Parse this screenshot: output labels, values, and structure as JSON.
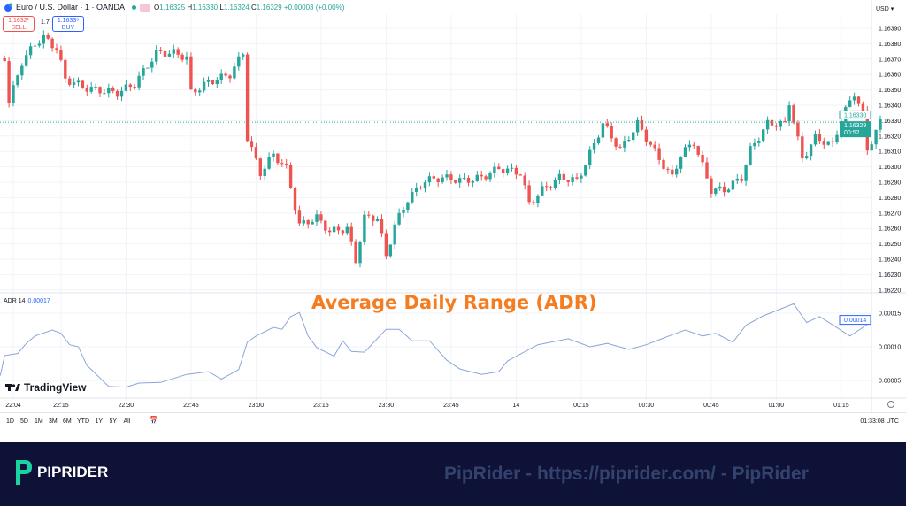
{
  "header": {
    "symbol": "Euro / U.S. Dollar · 1 · OANDA",
    "open_label": "O",
    "open": "1.16325",
    "high_label": "H",
    "high": "1.16330",
    "low_label": "L",
    "low": "1.16324",
    "close_label": "C",
    "close": "1.16329",
    "change": "+0.00003 (+0.00%)"
  },
  "trade": {
    "sell_price": "1.1632¹",
    "sell_label": "SELL",
    "spread": "1.7",
    "buy_price": "1.1633⁸",
    "buy_label": "BUY"
  },
  "currency": "USD",
  "price_axis": {
    "ticks": [
      "1.16390",
      "1.16380",
      "1.16370",
      "1.16360",
      "1.16350",
      "1.16340",
      "1.16330",
      "1.16320",
      "1.16310",
      "1.16300",
      "1.16290",
      "1.16280",
      "1.16270",
      "1.16260",
      "1.16250",
      "1.16240",
      "1.16230",
      "1.16220"
    ],
    "ask_badge": "1.16330",
    "last_badge": "1.16329",
    "countdown": "00:52"
  },
  "indicator": {
    "name": "ADR 14",
    "value": "0.00017",
    "ticks": [
      "0.00015",
      "0.00010",
      "0.00005"
    ],
    "last_badge": "0.00014"
  },
  "overlay_title": "Average Daily Range (ADR)",
  "brand": "TradingView",
  "time_axis": [
    {
      "t": "22:04",
      "label": "22:04"
    },
    {
      "t": "22:15",
      "label": "22:15"
    },
    {
      "t": "22:30",
      "label": "22:30"
    },
    {
      "t": "22:45",
      "label": "22:45"
    },
    {
      "t": "23:00",
      "label": "23:00"
    },
    {
      "t": "23:15",
      "label": "23:15"
    },
    {
      "t": "23:30",
      "label": "23:30"
    },
    {
      "t": "23:45",
      "label": "23:45"
    },
    {
      "t": "00:00",
      "label": "14"
    },
    {
      "t": "00:15",
      "label": "00:15"
    },
    {
      "t": "00:30",
      "label": "00:30"
    },
    {
      "t": "00:45",
      "label": "00:45"
    },
    {
      "t": "01:00",
      "label": "01:00"
    },
    {
      "t": "01:15",
      "label": "01:15"
    }
  ],
  "toolbar": {
    "ranges": [
      "1D",
      "5D",
      "1M",
      "3M",
      "6M",
      "YTD",
      "1Y",
      "5Y",
      "All"
    ],
    "clock": "01:33:08 UTC"
  },
  "colors": {
    "up": "#26a69a",
    "down": "#ef5350",
    "adr": "#8aa6d8",
    "accent": "#f57c1f",
    "footer": "#0e1236"
  },
  "chart_data": {
    "type": "candlestick",
    "price_closes": [
      [
        "22:02",
        1.16371
      ],
      [
        "22:03",
        1.16342
      ],
      [
        "22:06",
        1.16368
      ],
      [
        "22:09",
        1.1638
      ],
      [
        "22:11",
        1.16384
      ],
      [
        "22:14",
        1.16377
      ],
      [
        "22:16",
        1.16357
      ],
      [
        "22:21",
        1.16351
      ],
      [
        "22:28",
        1.16348
      ],
      [
        "22:30",
        1.16351
      ],
      [
        "22:32",
        1.16354
      ],
      [
        "22:37",
        1.16374
      ],
      [
        "22:41",
        1.16374
      ],
      [
        "22:44",
        1.16371
      ],
      [
        "22:45",
        1.16348
      ],
      [
        "22:49",
        1.16355
      ],
      [
        "22:54",
        1.1636
      ],
      [
        "22:57",
        1.16374
      ],
      [
        "22:58",
        1.16319
      ],
      [
        "23:01",
        1.16296
      ],
      [
        "23:04",
        1.16308
      ],
      [
        "23:07",
        1.16299
      ],
      [
        "23:10",
        1.16262
      ],
      [
        "23:14",
        1.16267
      ],
      [
        "23:17",
        1.16258
      ],
      [
        "23:21",
        1.1626
      ],
      [
        "23:23",
        1.16239
      ],
      [
        "23:25",
        1.16267
      ],
      [
        "23:28",
        1.16267
      ],
      [
        "23:30",
        1.16242
      ],
      [
        "23:32",
        1.16262
      ],
      [
        "23:35",
        1.16279
      ],
      [
        "23:39",
        1.16291
      ],
      [
        "23:43",
        1.16293
      ],
      [
        "23:48",
        1.16291
      ],
      [
        "23:52",
        1.16293
      ],
      [
        "23:56",
        1.16299
      ],
      [
        "00:01",
        1.16296
      ],
      [
        "00:03",
        1.16276
      ],
      [
        "00:06",
        1.16285
      ],
      [
        "00:10",
        1.16293
      ],
      [
        "00:14",
        1.16291
      ],
      [
        "00:16",
        1.16302
      ],
      [
        "00:20",
        1.16328
      ],
      [
        "00:24",
        1.16311
      ],
      [
        "00:28",
        1.16328
      ],
      [
        "00:30",
        1.16319
      ],
      [
        "00:33",
        1.16305
      ],
      [
        "00:36",
        1.16293
      ],
      [
        "00:38",
        1.16308
      ],
      [
        "00:41",
        1.16316
      ],
      [
        "00:45",
        1.16285
      ],
      [
        "00:48",
        1.16285
      ],
      [
        "00:52",
        1.16293
      ],
      [
        "00:54",
        1.16311
      ],
      [
        "00:58",
        1.16328
      ],
      [
        "01:02",
        1.16328
      ],
      [
        "01:03",
        1.16342
      ],
      [
        "01:06",
        1.16305
      ],
      [
        "01:09",
        1.16319
      ],
      [
        "01:13",
        1.16314
      ],
      [
        "01:15",
        1.16331
      ],
      [
        "01:18",
        1.16348
      ],
      [
        "01:20",
        1.16334
      ],
      [
        "01:21",
        1.16311
      ],
      [
        "01:24",
        1.16329
      ]
    ],
    "adr": [
      [
        "22:01",
        5.7e-05
      ],
      [
        "22:02",
        8.7e-05
      ],
      [
        "22:05",
        9e-05
      ],
      [
        "22:07",
        0.000105
      ],
      [
        "22:09",
        0.000116
      ],
      [
        "22:13",
        0.000125
      ],
      [
        "22:15",
        0.00012
      ],
      [
        "22:17",
        0.000103
      ],
      [
        "22:19",
        0.0001
      ],
      [
        "22:21",
        7.2e-05
      ],
      [
        "22:22",
        6.6e-05
      ],
      [
        "22:26",
        4.1e-05
      ],
      [
        "22:30",
        4e-05
      ],
      [
        "22:33",
        4.6e-05
      ],
      [
        "22:38",
        4.7e-05
      ],
      [
        "22:44",
        5.9e-05
      ],
      [
        "22:49",
        6.3e-05
      ],
      [
        "22:52",
        5.2e-05
      ],
      [
        "22:56",
        6.6e-05
      ],
      [
        "22:58",
        0.000107
      ],
      [
        "23:00",
        0.000116
      ],
      [
        "23:04",
        0.000129
      ],
      [
        "23:06",
        0.000126
      ],
      [
        "23:08",
        0.000145
      ],
      [
        "23:10",
        0.000151
      ],
      [
        "23:12",
        0.000116
      ],
      [
        "23:14",
        9.9e-05
      ],
      [
        "23:18",
        8.6e-05
      ],
      [
        "23:20",
        0.000109
      ],
      [
        "23:22",
        9.3e-05
      ],
      [
        "23:25",
        9.2e-05
      ],
      [
        "23:30",
        0.000126
      ],
      [
        "23:33",
        0.000126
      ],
      [
        "23:36",
        0.000109
      ],
      [
        "23:40",
        0.000109
      ],
      [
        "23:44",
        8e-05
      ],
      [
        "23:47",
        6.7e-05
      ],
      [
        "23:52",
        5.9e-05
      ],
      [
        "23:56",
        6.3e-05
      ],
      [
        "23:58",
        7.9e-05
      ],
      [
        "00:05",
        0.000103
      ],
      [
        "00:12",
        0.000112
      ],
      [
        "00:17",
        0.0001
      ],
      [
        "00:21",
        0.000105
      ],
      [
        "00:26",
        9.6e-05
      ],
      [
        "00:30",
        0.000103
      ],
      [
        "00:34",
        0.000113
      ],
      [
        "00:39",
        0.000125
      ],
      [
        "00:43",
        0.000116
      ],
      [
        "00:46",
        0.00012
      ],
      [
        "00:50",
        0.000107
      ],
      [
        "00:53",
        0.000132
      ],
      [
        "00:57",
        0.000146
      ],
      [
        "01:04",
        0.000164
      ],
      [
        "01:07",
        0.000136
      ],
      [
        "01:10",
        0.000145
      ],
      [
        "01:17",
        0.000116
      ],
      [
        "01:20",
        0.000129
      ],
      [
        "01:22",
        0.000138
      ]
    ],
    "price_range": [
      1.16215,
      1.164
    ],
    "adr_range": [
      2e-05,
      0.00018
    ],
    "grid": true
  },
  "footer": {
    "logo_text": "PIPRIDER",
    "watermark": "PipRider - https://piprider.com/ - PipRider"
  }
}
